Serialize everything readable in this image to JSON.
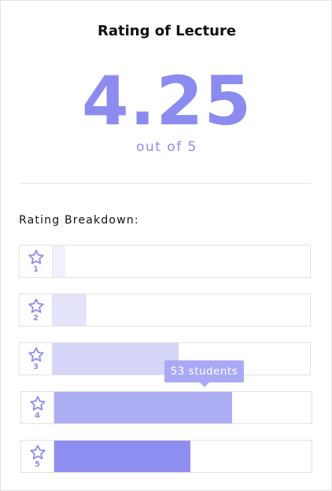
{
  "card": {
    "title": "Rating of Lecture",
    "score": "4.25",
    "out_of": "out of 5",
    "breakdown_label": "Rating Breakdown:"
  },
  "ratings": [
    {
      "star": "1",
      "fill_fraction": 0.05,
      "color": "#f1f1fc"
    },
    {
      "star": "2",
      "fill_fraction": 0.13,
      "color": "#e3e3fa"
    },
    {
      "star": "3",
      "fill_fraction": 0.49,
      "color": "#d5d5f8"
    },
    {
      "star": "4",
      "fill_fraction": 0.69,
      "color": "#aeaef5"
    },
    {
      "star": "5",
      "fill_fraction": 0.53,
      "color": "#8e8ef0"
    }
  ],
  "tooltip": {
    "text": "53 students",
    "color": "#a9a9f5"
  },
  "colors": {
    "accent": "#8c8cf0",
    "border": "#e2e2e2"
  },
  "icons": {
    "rating_star": "star-outline-icon"
  }
}
